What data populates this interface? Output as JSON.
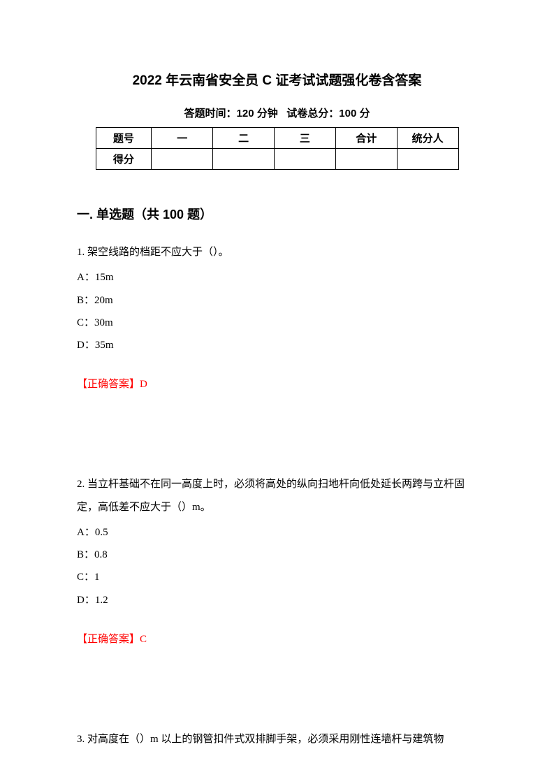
{
  "title": "2022 年云南省安全员 C 证考试试题强化卷含答案",
  "subtitle_time_label": "答题时间：",
  "subtitle_time_value": "120 分钟",
  "subtitle_score_label": "试卷总分：",
  "subtitle_score_value": "100 分",
  "table": {
    "headers": [
      "题号",
      "一",
      "二",
      "三",
      "合计",
      "统分人"
    ],
    "row_label": "得分"
  },
  "section1": {
    "heading": "一. 单选题（共 100 题）"
  },
  "q1": {
    "text": "1. 架空线路的档距不应大于（）。",
    "optA": "A：15m",
    "optB": "B：20m",
    "optC": "C：30m",
    "optD": "D：35m",
    "answer": "【正确答案】D"
  },
  "q2": {
    "text": "2. 当立杆基础不在同一高度上时，必须将高处的纵向扫地杆向低处延长两跨与立杆固定，高低差不应大于（）m。",
    "optA": "A：0.5",
    "optB": "B：0.8",
    "optC": "C：1",
    "optD": "D：1.2",
    "answer": "【正确答案】C"
  },
  "q3": {
    "text": "3. 对高度在（）m 以上的钢管扣件式双排脚手架，必须采用刚性连墙杆与建筑物"
  },
  "colors": {
    "text": "#000000",
    "answer": "#ff0000",
    "background": "#ffffff",
    "border": "#000000"
  }
}
